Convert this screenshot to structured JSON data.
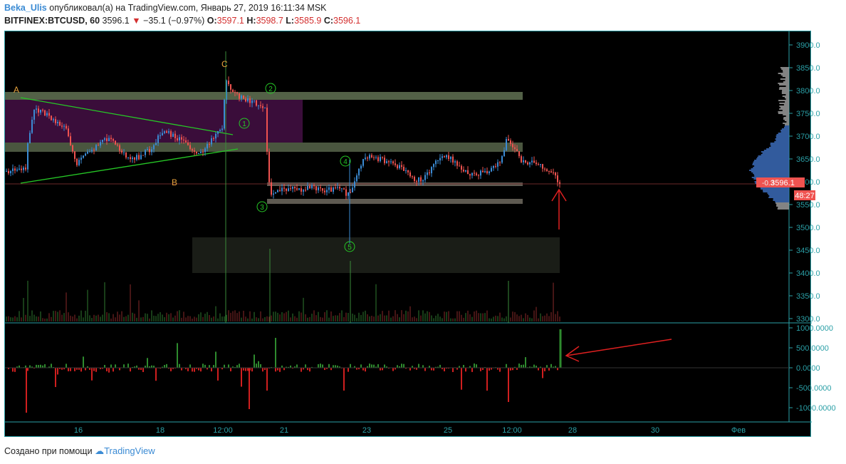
{
  "header": {
    "username": "Beka_Ulis",
    "published_text": "опубликовал(а) на TradingView.com, Январь 27, 2019 16:11:34 MSK",
    "symbol": "BITFINEX:BTCUSD, 60",
    "last": "3596.1",
    "change": "−35.1 (−0.97%)",
    "open_label": "O:",
    "open": "3597.1",
    "high_label": "H:",
    "high": "3598.7",
    "low_label": "L:",
    "low": "3585.9",
    "close_label": "C:",
    "close": "3596.1"
  },
  "price_axis": [
    "3900.0",
    "3850.0",
    "3800.0",
    "3750.0",
    "3700.0",
    "3650.0",
    "3600.0",
    "3550.0",
    "3500.0",
    "3450.0",
    "3400.0",
    "3350.0",
    "3300.0"
  ],
  "price_badge": "3596.1",
  "timer_badge": "48:27",
  "small_badge": "-0.3",
  "osc_axis": [
    "1000.0000",
    "500.0000",
    "0.0000",
    "-500.0000",
    "-1000.0000"
  ],
  "time_axis": [
    "16",
    "18",
    "12:00",
    "21",
    "23",
    "25",
    "12:00",
    "28",
    "30",
    "Фев"
  ],
  "annotations": {
    "A": "A",
    "B": "B",
    "C": "C",
    "w1": "1",
    "w2": "2",
    "w3": "3",
    "w4": "4",
    "w5": "5"
  },
  "footer": {
    "created": "Создано при помощи",
    "brand": "TradingView"
  },
  "colors": {
    "background": "#000000",
    "frame": "#2a9fa6",
    "candle_up": "#3b8bd4",
    "candle_down": "#ef5350",
    "trendline": "#26c826",
    "zone": "#5c6b4f",
    "purple_zone": "#3a0d3a",
    "label_orange": "#e8a33d"
  },
  "chart_data": {
    "type": "candlestick",
    "price_range": [
      3280,
      3920
    ],
    "oscillator_range": [
      -1200,
      1000
    ],
    "last_price": 3596.1
  }
}
